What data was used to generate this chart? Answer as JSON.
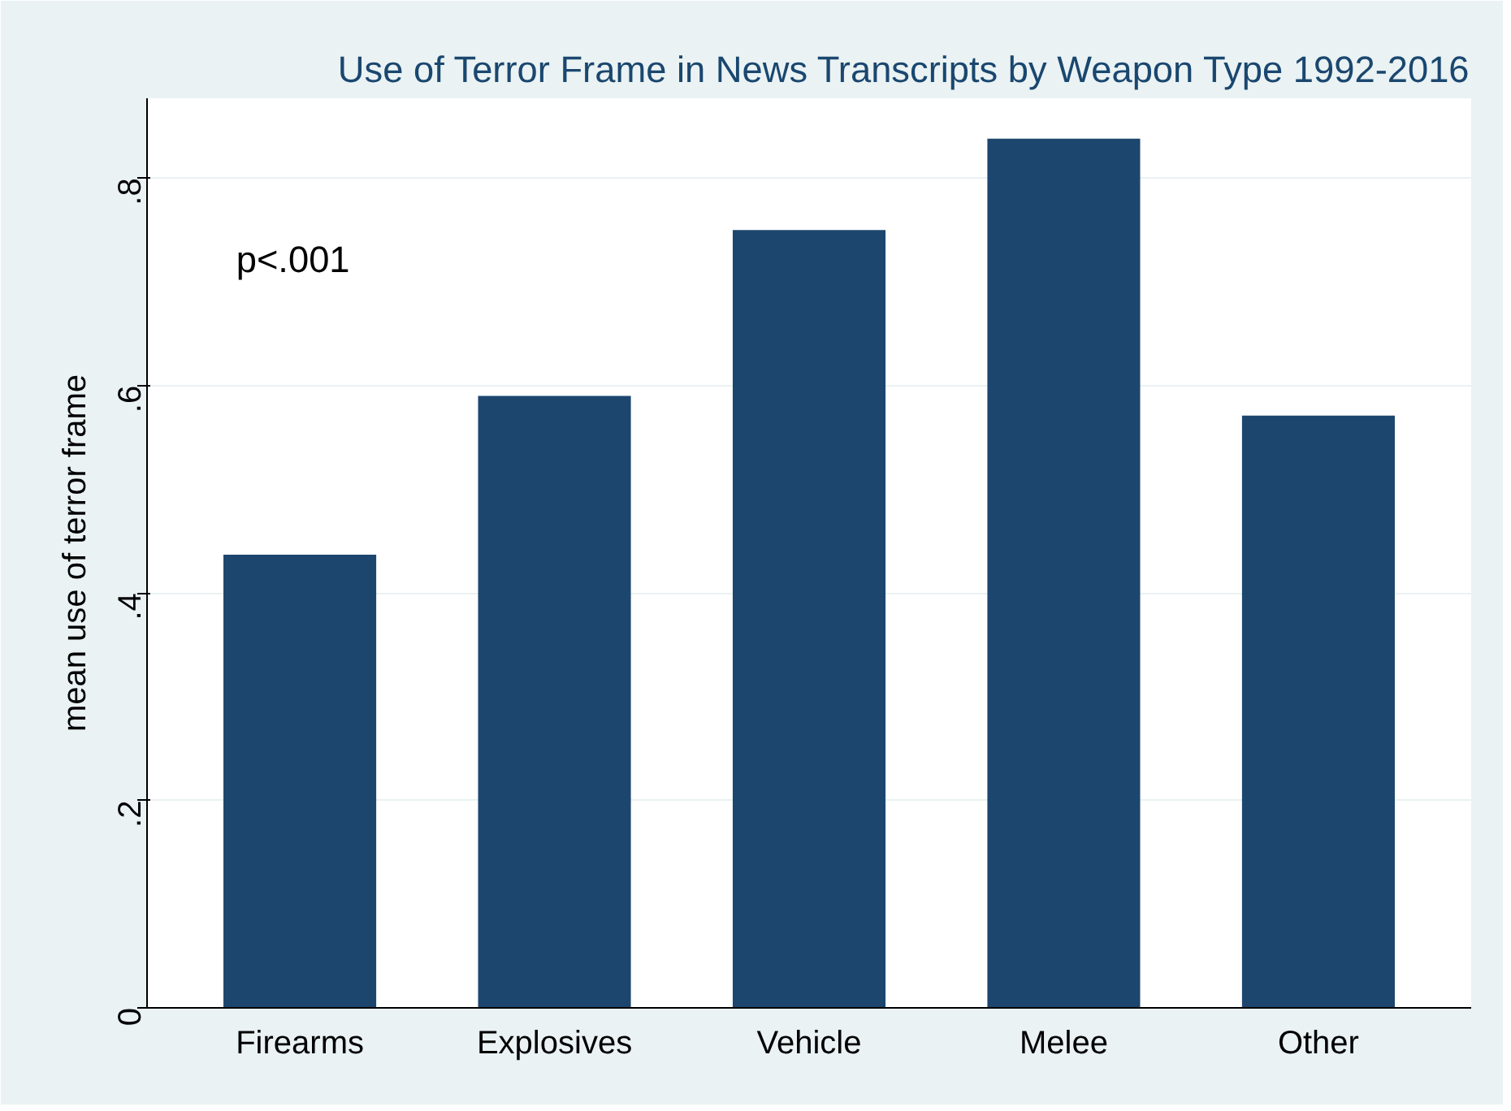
{
  "chart_data": {
    "type": "bar",
    "title": "Use of Terror Frame in News Transcripts by Weapon Type 1992-2016",
    "ylabel": "mean use of terror frame",
    "categories": [
      "Firearms",
      "Explosives",
      "Vehicle",
      "Melee",
      "Other"
    ],
    "values": [
      0.437,
      0.59,
      0.75,
      0.838,
      0.571
    ],
    "color": "#1c466e",
    "ylim": [
      0,
      0.877
    ],
    "yticks": [
      0,
      {
        "value": 0.2,
        "label": ".2"
      },
      {
        "value": 0.4,
        "label": ".4"
      },
      {
        "value": 0.6,
        "label": ".6"
      },
      {
        "value": 0.8,
        "label": ".8"
      }
    ],
    "grid": "y",
    "annotations": [
      "p<.001"
    ]
  }
}
